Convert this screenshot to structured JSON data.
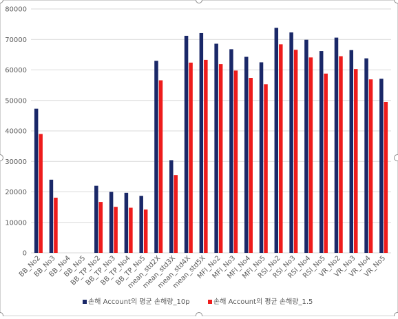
{
  "colors": {
    "series1": "#1a2868",
    "series2": "#ee1c1c",
    "grid": "#d9d9d9",
    "axis_text": "#595959"
  },
  "chart_data": {
    "type": "bar",
    "title": "",
    "xlabel": "",
    "ylabel": "",
    "ylim": [
      0,
      80000
    ],
    "y_ticks": [
      "0",
      "10000",
      "20000",
      "30000",
      "40000",
      "50000",
      "60000",
      "70000",
      "80000"
    ],
    "grid": true,
    "legend_position": "bottom",
    "categories": [
      "BB_No2",
      "BB_No3",
      "BB_No4",
      "BB_No5",
      "BB_TP_No2",
      "BB_TP_No3",
      "BB_TP_No4",
      "BB_TP_No5",
      "mean_std2X",
      "mean_std3X",
      "mean_std4X",
      "mean_std5X",
      "MFI_No2",
      "MFI_No3",
      "MFI_No4",
      "MFI_No5",
      "RSI_No2",
      "RSI_No3",
      "RSI_No4",
      "RSI_No5",
      "VR_No2",
      "VR_No3",
      "VR_No4",
      "VR_No5"
    ],
    "series": [
      {
        "name": "손해 Account의 평균 손해량_10p",
        "values": [
          47300,
          24000,
          0,
          0,
          22000,
          20000,
          19700,
          18700,
          63000,
          30400,
          71200,
          72100,
          68600,
          66800,
          64300,
          62500,
          73800,
          72300,
          69900,
          66200,
          70600,
          66500,
          63800,
          57100
        ]
      },
      {
        "name": "손해 Account의 평균 손해량_1.5",
        "values": [
          39000,
          18100,
          0,
          0,
          16700,
          15100,
          14800,
          14200,
          56600,
          25500,
          62400,
          63300,
          61900,
          59800,
          57400,
          55300,
          68400,
          66600,
          64100,
          58800,
          64500,
          60300,
          56900,
          49500
        ]
      }
    ]
  }
}
